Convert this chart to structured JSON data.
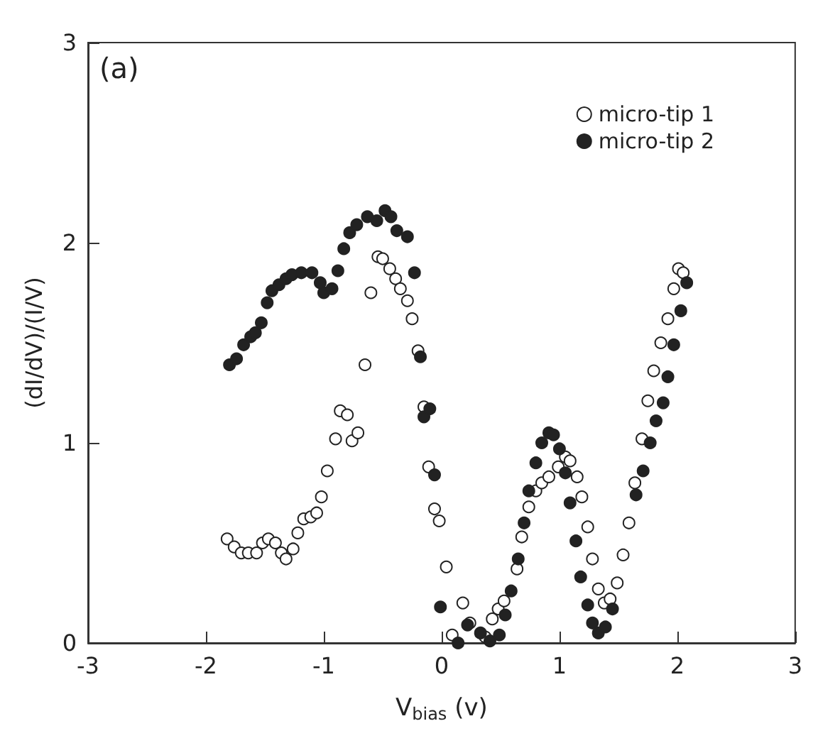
{
  "chart_data": {
    "type": "scatter",
    "xlabel": "V$_{bias}$ (v)",
    "ylabel": "(dI/dV)/(I/V)",
    "annotations": [
      "(a)"
    ],
    "xlim": [
      -3,
      3
    ],
    "ylim": [
      0,
      3
    ],
    "xticks": [
      -3,
      -2,
      -1,
      0,
      1,
      2,
      3
    ],
    "yticks": [
      0,
      1,
      2,
      3
    ],
    "grid": false,
    "legend": "top right",
    "marker": "circle",
    "series": [
      {
        "name": "micro-tip 1",
        "color": "#ffffff",
        "x": [
          -1.82,
          -1.76,
          -1.7,
          -1.64,
          -1.57,
          -1.52,
          -1.47,
          -1.41,
          -1.36,
          -1.32,
          -1.26,
          -1.22,
          -1.17,
          -1.11,
          -1.06,
          -1.02,
          -0.97,
          -0.9,
          -0.86,
          -0.8,
          -0.76,
          -0.71,
          -0.65,
          -0.6,
          -0.54,
          -0.5,
          -0.44,
          -0.39,
          -0.35,
          -0.29,
          -0.25,
          -0.2,
          -0.15,
          -0.11,
          -0.06,
          -0.02,
          0.04,
          0.09,
          0.18,
          0.24,
          0.37,
          0.43,
          0.48,
          0.53,
          0.64,
          0.68,
          0.74,
          0.8,
          0.85,
          0.91,
          0.99,
          1.05,
          1.09,
          1.15,
          1.19,
          1.24,
          1.28,
          1.33,
          1.38,
          1.43,
          1.49,
          1.54,
          1.59,
          1.64,
          1.7,
          1.75,
          1.8,
          1.86,
          1.92,
          1.97,
          2.01,
          2.05
        ],
        "values": [
          0.52,
          0.48,
          0.45,
          0.45,
          0.45,
          0.5,
          0.52,
          0.5,
          0.45,
          0.42,
          0.47,
          0.55,
          0.62,
          0.63,
          0.65,
          0.73,
          0.86,
          1.02,
          1.16,
          1.14,
          1.01,
          1.05,
          1.39,
          1.75,
          1.93,
          1.92,
          1.87,
          1.82,
          1.77,
          1.71,
          1.62,
          1.46,
          1.18,
          0.88,
          0.67,
          0.61,
          0.38,
          0.04,
          0.2,
          0.1,
          0.03,
          0.12,
          0.17,
          0.21,
          0.37,
          0.53,
          0.68,
          0.76,
          0.8,
          0.83,
          0.88,
          0.93,
          0.91,
          0.83,
          0.73,
          0.58,
          0.42,
          0.27,
          0.2,
          0.22,
          0.3,
          0.44,
          0.6,
          0.8,
          1.02,
          1.21,
          1.36,
          1.5,
          1.62,
          1.77,
          1.87,
          1.85
        ]
      },
      {
        "name": "micro-tip 2",
        "color": "#222222",
        "x": [
          -1.8,
          -1.74,
          -1.68,
          -1.62,
          -1.58,
          -1.53,
          -1.48,
          -1.44,
          -1.38,
          -1.32,
          -1.27,
          -1.19,
          -1.1,
          -1.03,
          -1.0,
          -0.93,
          -0.88,
          -0.83,
          -0.78,
          -0.72,
          -0.63,
          -0.55,
          -0.48,
          -0.43,
          -0.38,
          -0.29,
          -0.23,
          -0.18,
          -0.15,
          -0.1,
          -0.06,
          -0.01,
          0.14,
          0.22,
          0.33,
          0.41,
          0.49,
          0.54,
          0.59,
          0.65,
          0.7,
          0.74,
          0.8,
          0.85,
          0.91,
          0.95,
          1.0,
          1.05,
          1.09,
          1.14,
          1.18,
          1.24,
          1.28,
          1.33,
          1.39,
          1.45,
          1.65,
          1.71,
          1.77,
          1.82,
          1.88,
          1.92,
          1.97,
          2.03,
          2.08
        ],
        "values": [
          1.39,
          1.42,
          1.49,
          1.53,
          1.55,
          1.6,
          1.7,
          1.76,
          1.79,
          1.82,
          1.84,
          1.85,
          1.85,
          1.8,
          1.75,
          1.77,
          1.86,
          1.97,
          2.05,
          2.09,
          2.13,
          2.11,
          2.16,
          2.13,
          2.06,
          2.03,
          1.85,
          1.43,
          1.13,
          1.17,
          0.84,
          0.18,
          0.0,
          0.09,
          0.05,
          0.01,
          0.04,
          0.14,
          0.26,
          0.42,
          0.6,
          0.76,
          0.9,
          1.0,
          1.05,
          1.04,
          0.97,
          0.85,
          0.7,
          0.51,
          0.33,
          0.19,
          0.1,
          0.05,
          0.08,
          0.17,
          0.74,
          0.86,
          1.0,
          1.11,
          1.2,
          1.33,
          1.49,
          1.66,
          1.8
        ]
      }
    ]
  }
}
